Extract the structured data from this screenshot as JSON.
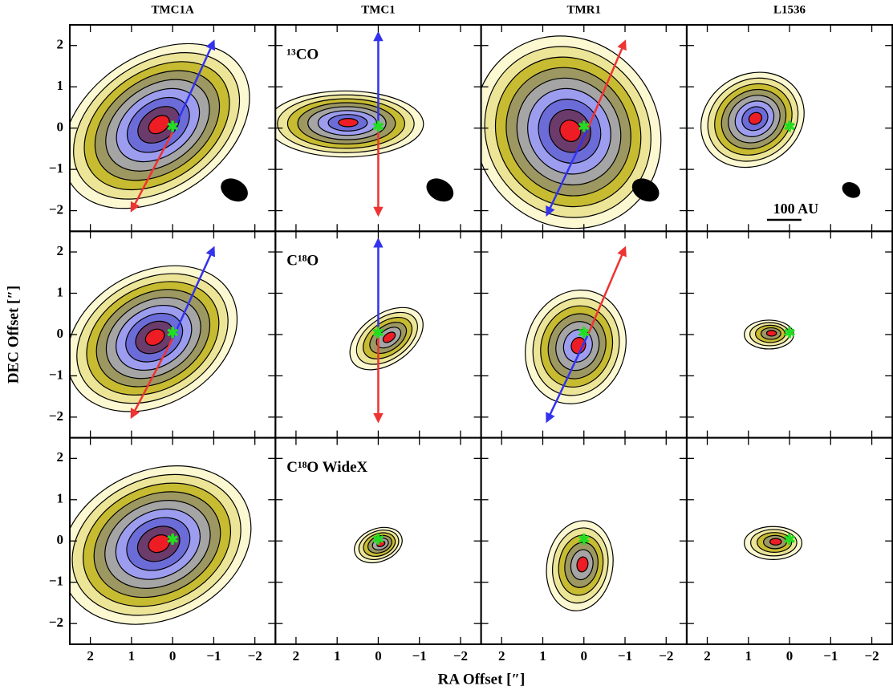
{
  "chart_data": {
    "type": "contour",
    "columns": [
      "TMC1A",
      "TMC1",
      "TMR1",
      "L1536"
    ],
    "panel_labels": [
      "¹³CO",
      "C¹⁸O",
      "C¹⁸O WideX"
    ],
    "scale_bar": "100 AU",
    "xlabel": "RA Offset [″]",
    "ylabel": "DEC Offset [″]",
    "xlim": [
      2.5,
      -2.5
    ],
    "ylim": [
      -2.5,
      2.5
    ],
    "xticks": [
      2,
      1,
      0,
      {
        "value": -1,
        "label": "−1"
      },
      {
        "value": -2,
        "label": "−2"
      }
    ],
    "yticks": [
      {
        "value": -2,
        "label": "−2"
      },
      {
        "value": -1,
        "label": "−1"
      },
      0,
      1,
      2
    ]
  }
}
